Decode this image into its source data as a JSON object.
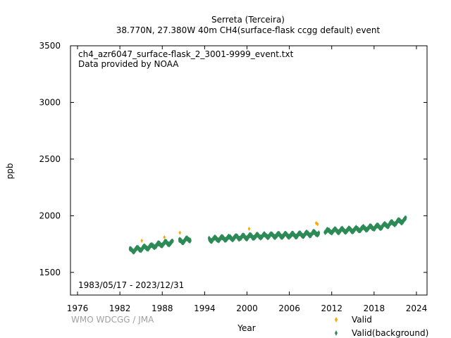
{
  "chart_data": {
    "type": "scatter",
    "title": "Serreta (Terceira)",
    "subtitle": "38.770N, 27.380W 40m    CH4(surface-flask ccgg default) event",
    "xlabel": "Year",
    "ylabel": "ppb",
    "xlim": [
      1975,
      2025.5
    ],
    "ylim": [
      1300,
      3500
    ],
    "xticks": [
      1976,
      1982,
      1988,
      1994,
      2000,
      2006,
      2012,
      2018,
      2024
    ],
    "yticks": [
      1500,
      2000,
      2500,
      3000,
      3500
    ],
    "grid": false,
    "legend_position": "bottom-right",
    "annotations": {
      "file": "ch4_azr6047_surface-flask_2_3001-9999_event.txt",
      "provider": "Data provided by NOAA",
      "period": "1983/05/17 - 2023/12/31",
      "credit": "WMO WDCGG / JMA"
    },
    "background_segments": [
      {
        "x": [
          1983.4,
          1986.0,
          1988.0,
          1989.5
        ],
        "y": [
          1692,
          1722,
          1752,
          1765
        ]
      },
      {
        "x": [
          1990.4,
          1992.0
        ],
        "y": [
          1772,
          1795
        ]
      },
      {
        "x": [
          1994.6,
          1999.0,
          2003.0,
          2007.0,
          2010.2
        ],
        "y": [
          1790,
          1810,
          1825,
          1828,
          1848
        ]
      },
      {
        "x": [
          2011.0,
          2015.0,
          2019.0,
          2022.5
        ],
        "y": [
          1862,
          1875,
          1905,
          1965
        ]
      }
    ],
    "series": [
      {
        "name": "Valid",
        "color": "#ffa500",
        "marker": "diamond",
        "x": [
          1985.1,
          1988.3,
          1990.5,
          2000.3,
          2009.8,
          2010.0
        ],
        "y": [
          1780,
          1810,
          1850,
          1885,
          1935,
          1925
        ]
      },
      {
        "name": "Valid(background)",
        "color": "#2e8b57",
        "marker": "diamond",
        "points_generated_from": "background_segments"
      }
    ]
  }
}
